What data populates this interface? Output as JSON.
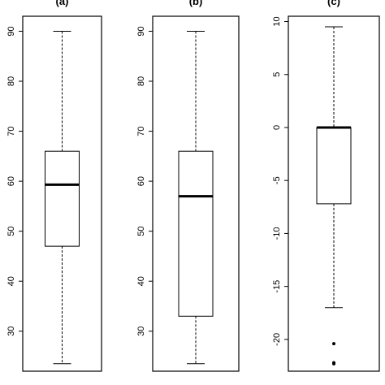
{
  "chart_data": [
    {
      "type": "boxplot",
      "title": "(a)",
      "ylim": [
        22,
        93
      ],
      "yticks": [
        30,
        40,
        50,
        60,
        70,
        80,
        90
      ],
      "ytick_labels": [
        "30",
        "40",
        "50",
        "60",
        "70",
        "80",
        "90"
      ],
      "box": {
        "min": 23.5,
        "q1": 47,
        "median": 59.3,
        "q3": 66,
        "max": 90
      },
      "outliers": []
    },
    {
      "type": "boxplot",
      "title": "(b)",
      "ylim": [
        22,
        93
      ],
      "yticks": [
        30,
        40,
        50,
        60,
        70,
        80,
        90
      ],
      "ytick_labels": [
        "30",
        "40",
        "50",
        "60",
        "70",
        "80",
        "90"
      ],
      "box": {
        "min": 23.5,
        "q1": 33,
        "median": 57,
        "q3": 66,
        "max": 90
      },
      "outliers": []
    },
    {
      "type": "boxplot",
      "title": "(c)",
      "ylim": [
        -23,
        10.5
      ],
      "yticks": [
        -20,
        -15,
        -10,
        -5,
        0,
        5,
        10
      ],
      "ytick_labels": [
        "-20",
        "-15",
        "-10",
        "-5",
        "0",
        "5",
        "10"
      ],
      "box": {
        "min": -17,
        "q1": -7.2,
        "median": 0,
        "q3": 0,
        "max": 9.5
      },
      "outliers": [
        -20.4,
        -22.2,
        -22.3
      ]
    }
  ]
}
